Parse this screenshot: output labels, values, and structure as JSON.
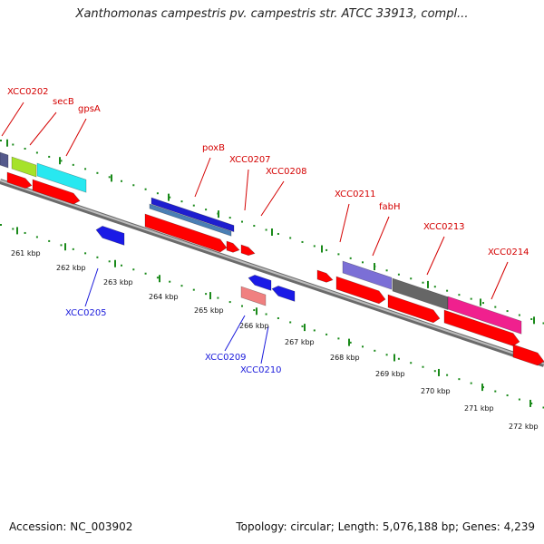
{
  "title": "Xanthomonas campestris pv. campestris str. ATCC 33913, compl...",
  "footer": {
    "accession": "Accession: NC_003902",
    "summary": "Topology: circular; Length: 5,076,188 bp; Genes: 4,239"
  },
  "colors": {
    "forward_label": "#d40000",
    "reverse_label": "#1a1adb",
    "cds": "#ff0000",
    "backbone": "#888888",
    "ticks": "#1a8a1a"
  },
  "ruler": {
    "tick_labels": [
      "261 kbp",
      "262 kbp",
      "263 kbp",
      "264 kbp",
      "265 kbp",
      "266 kbp",
      "267 kbp",
      "268 kbp",
      "269 kbp",
      "270 kbp",
      "271 kbp",
      "272 kbp"
    ]
  },
  "gene_labels": {
    "forward": [
      "XCC0202",
      "secB",
      "gpsA",
      "poxB",
      "XCC0207",
      "XCC0208",
      "XCC0211",
      "fabH",
      "XCC0213",
      "XCC0214"
    ],
    "reverse": [
      "XCC0205",
      "XCC0209",
      "XCC0210"
    ]
  }
}
